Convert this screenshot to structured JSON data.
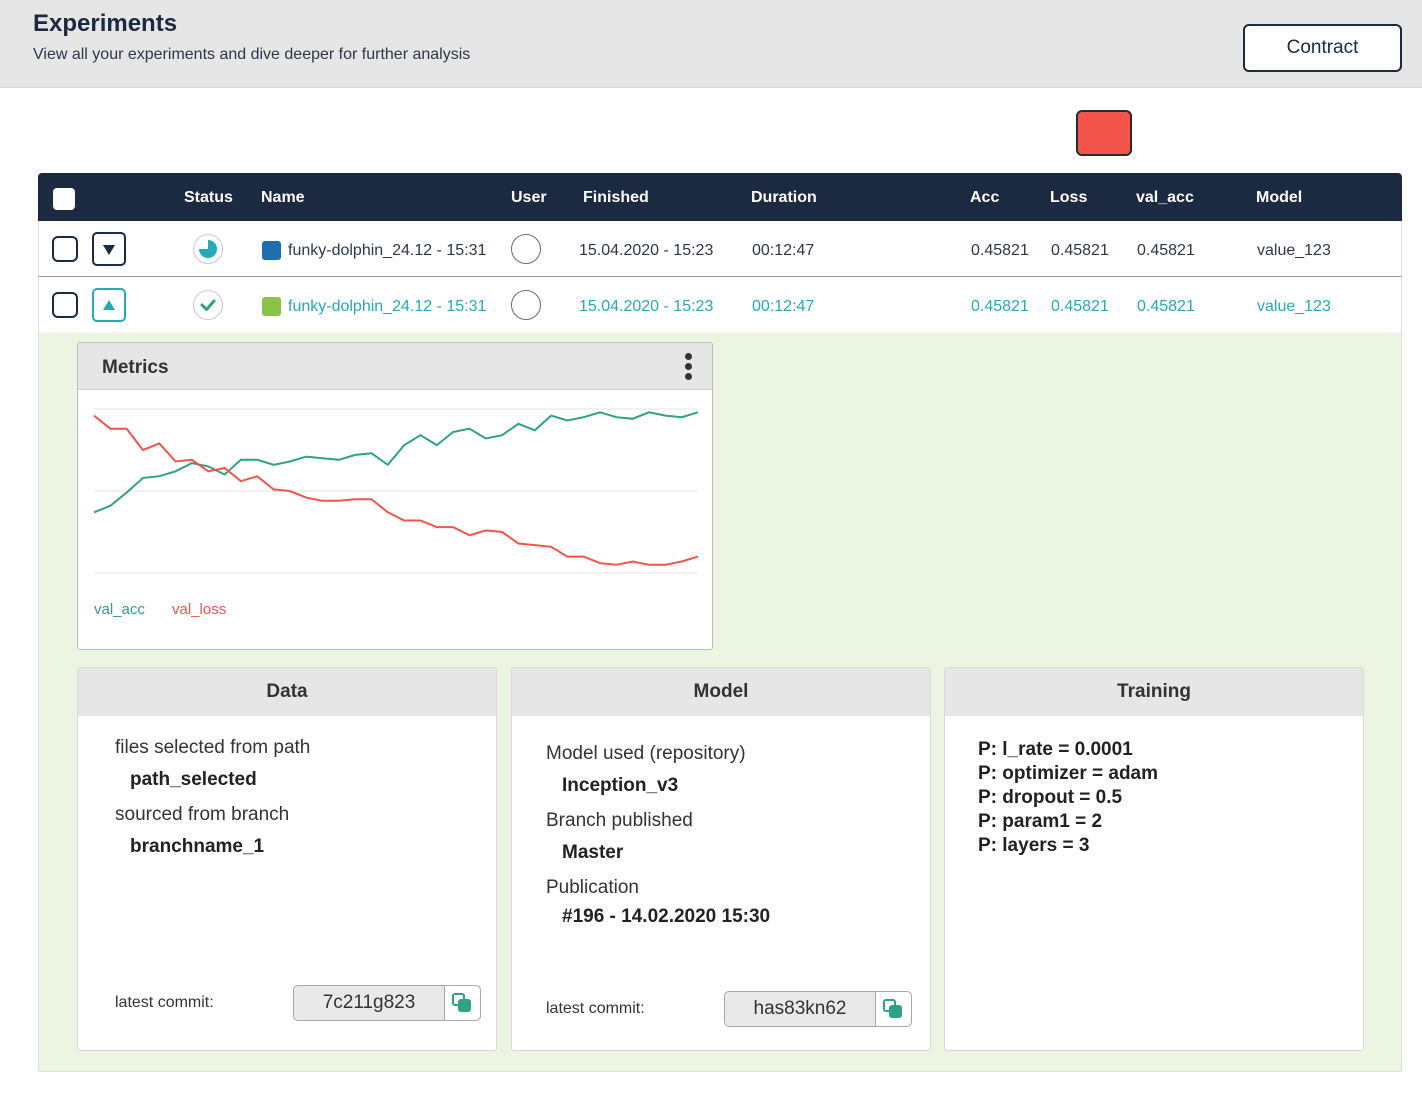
{
  "header": {
    "title": "Experiments",
    "subtitle": "View all your experiments and dive deeper for further analysis",
    "contract_label": "Contract"
  },
  "colors": {
    "accent_teal": "#26a9b8",
    "navy": "#1b2a41",
    "red": "#f2544c",
    "green_line": "#2fa184",
    "panel_bg": "#ecf4e2",
    "swatch_blue": "#1e6fb0",
    "swatch_green": "#8bc34a"
  },
  "table": {
    "columns": [
      "Status",
      "Name",
      "User",
      "Finished",
      "Duration",
      "Acc",
      "Loss",
      "val_acc",
      "Model"
    ],
    "rows": [
      {
        "status_icon": "progress-pie-icon",
        "toggle_icon": "caret-down-icon",
        "name": "funky-dolphin_24.12 - 15:31",
        "finished": "15.04.2020 - 15:23",
        "duration": "00:12:47",
        "acc": "0.45821",
        "loss": "0.45821",
        "val_acc": "0.45821",
        "model": "value_123"
      },
      {
        "status_icon": "check-circle-icon",
        "toggle_icon": "caret-up-icon",
        "name": "funky-dolphin_24.12 - 15:31",
        "finished": "15.04.2020 - 15:23",
        "duration": "00:12:47",
        "acc": "0.45821",
        "loss": "0.45821",
        "val_acc": "0.45821",
        "model": "value_123"
      }
    ]
  },
  "metrics": {
    "title": "Metrics",
    "legend": [
      "val_acc",
      "val_loss"
    ]
  },
  "chart_data": {
    "type": "line",
    "title": "",
    "xlabel": "",
    "ylabel": "",
    "ylim": [
      0,
      1
    ],
    "grid": true,
    "series": [
      {
        "name": "val_acc",
        "color": "#2fa184",
        "values": [
          0.37,
          0.41,
          0.49,
          0.58,
          0.59,
          0.62,
          0.67,
          0.65,
          0.6,
          0.69,
          0.69,
          0.66,
          0.68,
          0.71,
          0.7,
          0.69,
          0.72,
          0.73,
          0.66,
          0.78,
          0.84,
          0.78,
          0.86,
          0.88,
          0.82,
          0.84,
          0.91,
          0.87,
          0.96,
          0.93,
          0.95,
          0.98,
          0.95,
          0.94,
          0.98,
          0.96,
          0.95,
          0.98
        ]
      },
      {
        "name": "val_loss",
        "color": "#f2544c",
        "values": [
          0.96,
          0.88,
          0.88,
          0.75,
          0.79,
          0.68,
          0.69,
          0.62,
          0.64,
          0.56,
          0.59,
          0.51,
          0.5,
          0.46,
          0.44,
          0.44,
          0.45,
          0.45,
          0.37,
          0.32,
          0.32,
          0.28,
          0.28,
          0.23,
          0.26,
          0.25,
          0.18,
          0.17,
          0.16,
          0.1,
          0.1,
          0.06,
          0.05,
          0.07,
          0.05,
          0.05,
          0.07,
          0.1
        ]
      }
    ]
  },
  "data_card": {
    "title": "Data",
    "label1": "files selected from path",
    "value1": "path_selected",
    "label2": "sourced from branch",
    "value2": "branchname_1",
    "commit_label": "latest commit:",
    "commit": "7c211g823"
  },
  "model_card": {
    "title": "Model",
    "label1": "Model used (repository)",
    "value1": "Inception_v3",
    "label2": "Branch published",
    "value2": "Master",
    "label3": "Publication",
    "value3": "#196 - 14.02.2020 15:30",
    "commit_label": "latest commit:",
    "commit": "has83kn62"
  },
  "training_card": {
    "title": "Training",
    "params": [
      "P: l_rate = 0.0001",
      "P: optimizer = adam",
      "P: dropout = 0.5",
      "P: param1 = 2",
      "P: layers = 3"
    ]
  }
}
